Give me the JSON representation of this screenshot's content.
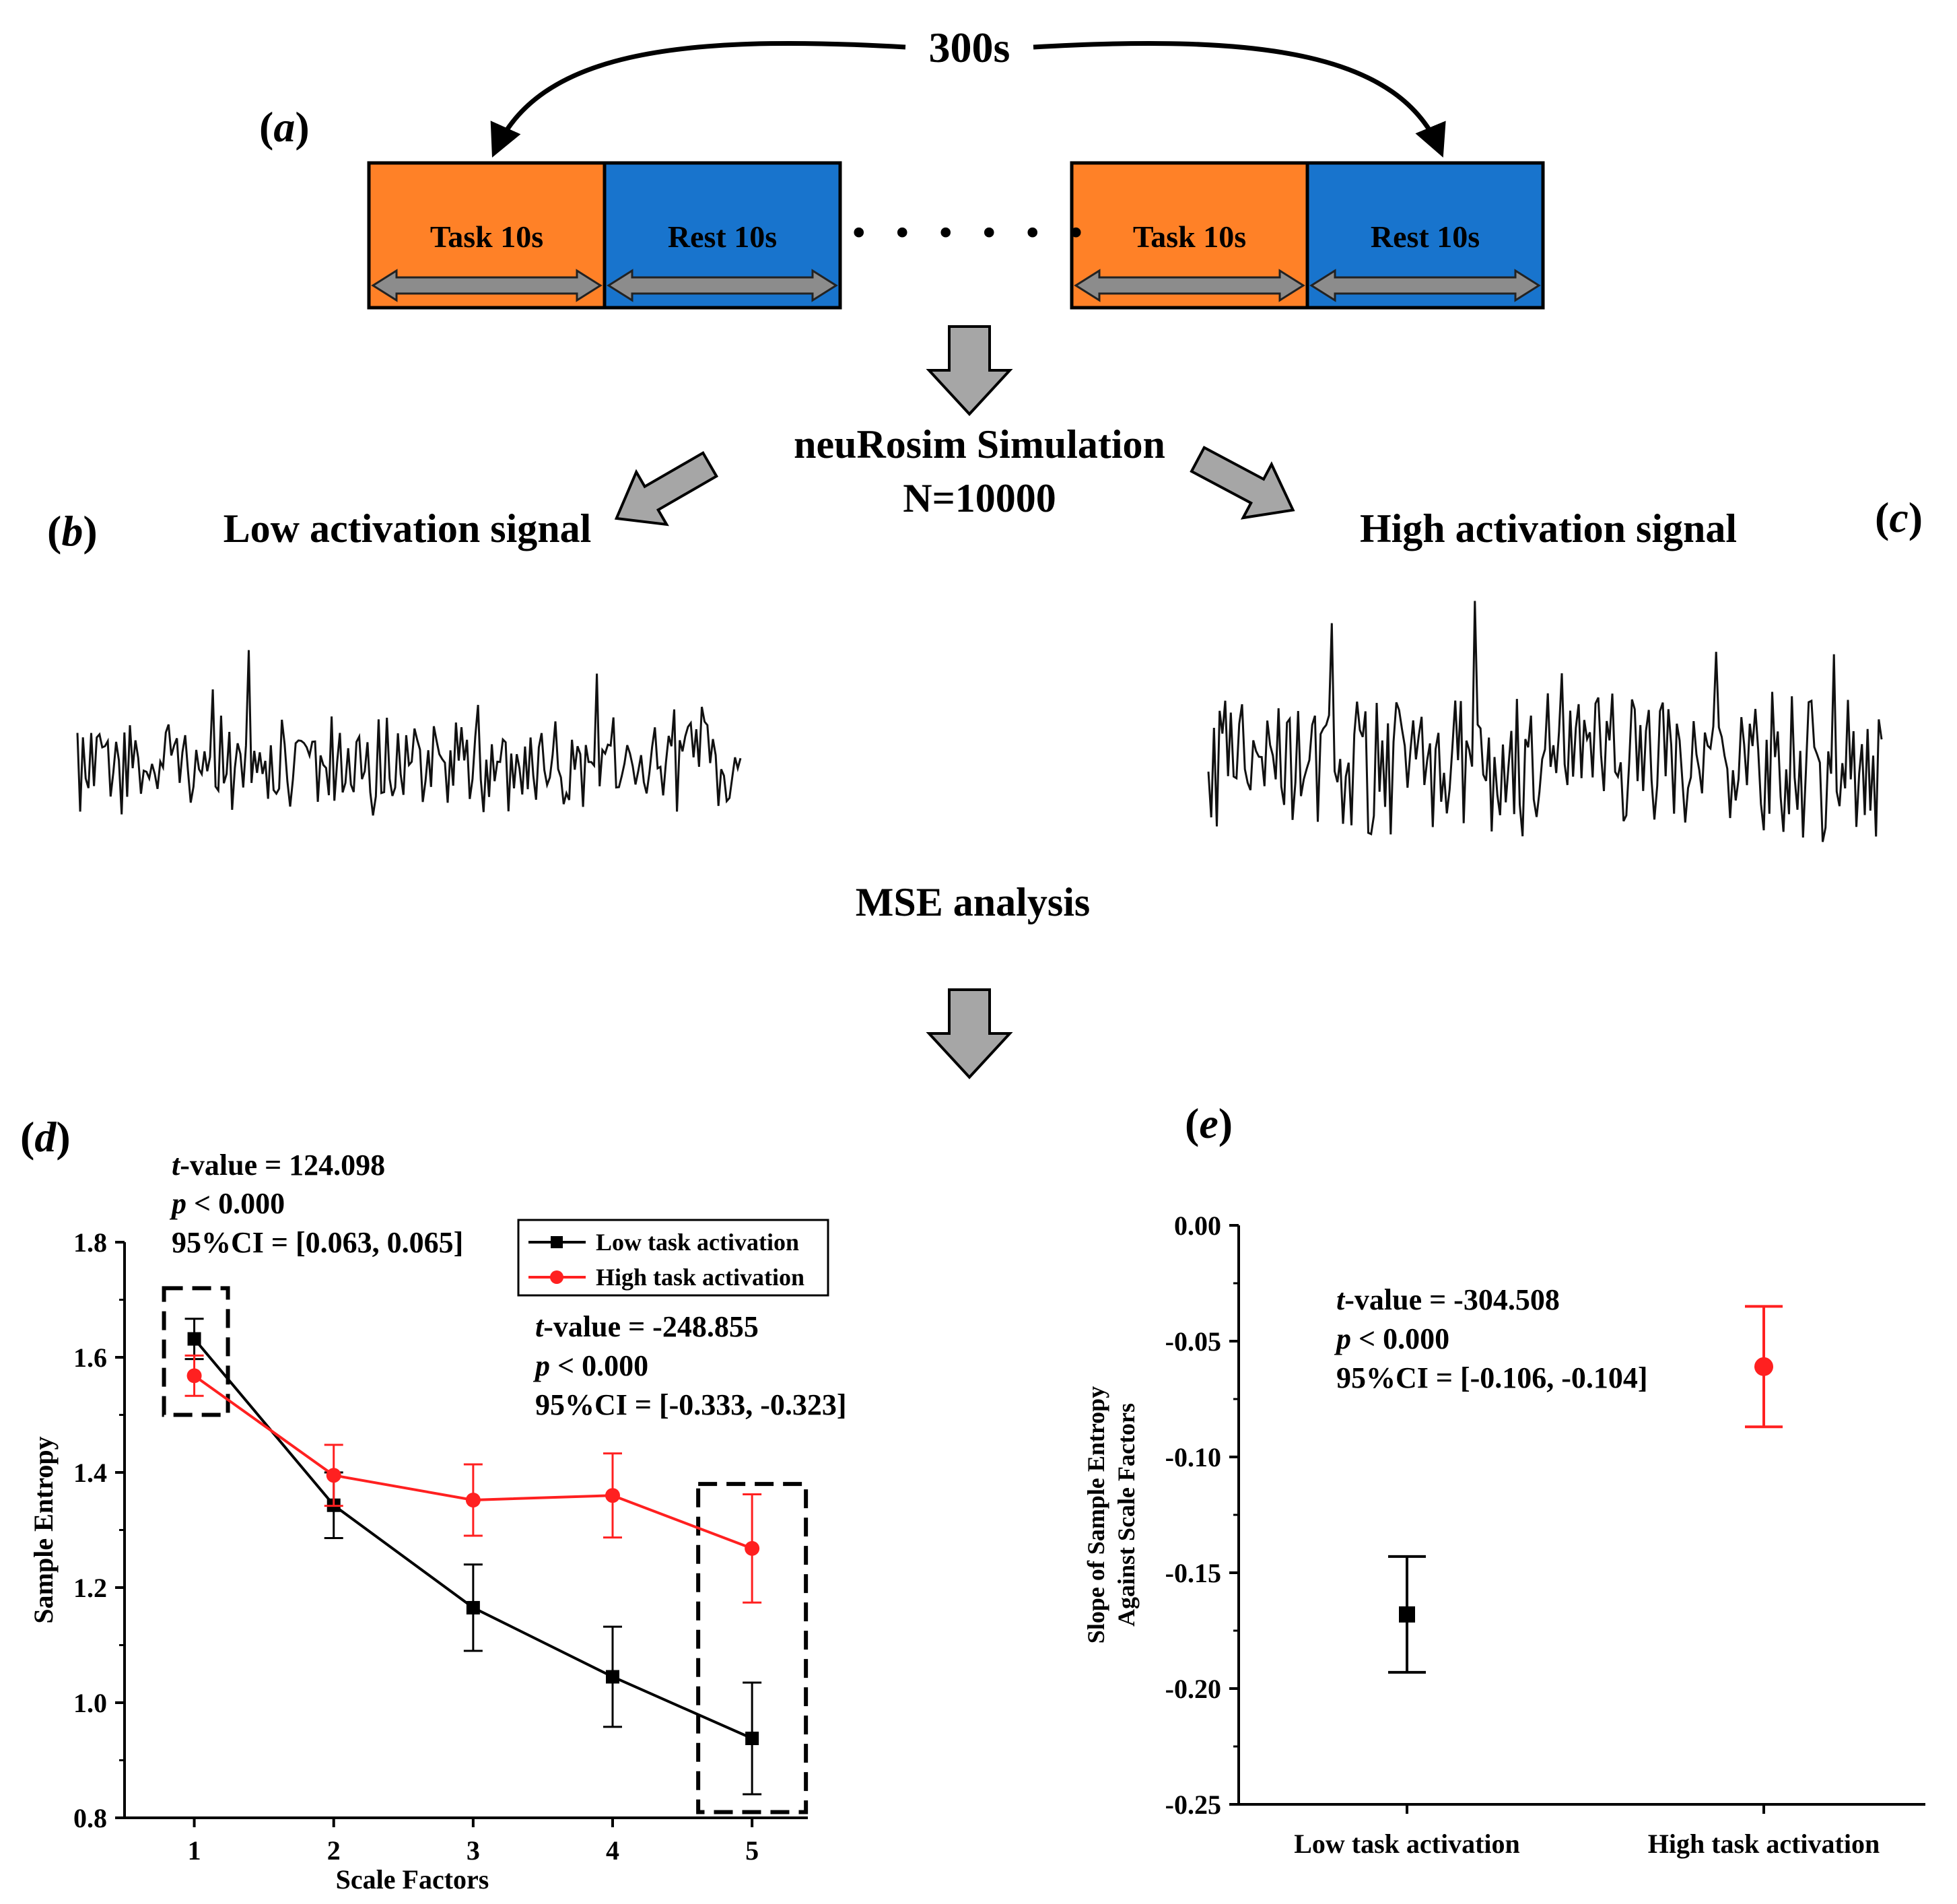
{
  "panel_a": {
    "label_prefix": "(",
    "label_letter": "a",
    "label_suffix": ")",
    "duration_label": "300s",
    "blocks": [
      {
        "text": "Task 10s",
        "color": "#ff8127"
      },
      {
        "text": "Rest 10s",
        "color": "#1874cd"
      },
      {
        "text": "Task 10s",
        "color": "#ff8127"
      },
      {
        "text": "Rest 10s",
        "color": "#1874cd"
      }
    ],
    "ellipsis": "· · · · · ·"
  },
  "simulation": {
    "title": "neuRosim Simulation",
    "n_label": "N=10000"
  },
  "panel_b": {
    "label_letter": "b",
    "title": "Low activation signal"
  },
  "panel_c": {
    "label_letter": "c",
    "title": "High activation signal"
  },
  "mse_label": "MSE analysis",
  "panel_d": {
    "label_letter": "d",
    "stats_left": {
      "t_italic": "t",
      "t_rest": "-value = 124.098",
      "p_italic": "p",
      "p_rest": " < 0.000",
      "ci": "95%CI = [0.063, 0.065]"
    },
    "stats_right": {
      "t_italic": "t",
      "t_rest": "-value = -248.855",
      "p_italic": "p",
      "p_rest": " < 0.000",
      "ci": "95%CI = [-0.333, -0.323]"
    }
  },
  "panel_e": {
    "label_letter": "e",
    "stats": {
      "t_italic": "t",
      "t_rest": "-value = -304.508",
      "p_italic": "p",
      "p_rest": " < 0.000",
      "ci": "95%CI = [-0.106, -0.104]"
    }
  },
  "colors": {
    "low": "#000000",
    "high": "#ff2020",
    "task": "#ff8127",
    "rest": "#1874cd",
    "arrow_fill": "#a6a6a6"
  },
  "chart_data": [
    {
      "type": "line",
      "xlabel": "Scale Factors",
      "ylabel": "Sample Entropy",
      "x": [
        1,
        2,
        3,
        4,
        5
      ],
      "xlim": [
        0.5,
        5.4
      ],
      "ylim": [
        0.8,
        1.8
      ],
      "yticks": [
        "0.8",
        "1.0",
        "1.2",
        "1.4",
        "1.6",
        "1.8"
      ],
      "xticks": [
        "1",
        "2",
        "3",
        "4",
        "5"
      ],
      "legend": "top-right",
      "series": [
        {
          "name": "Low task activation",
          "color": "#000000",
          "marker": "square",
          "values": [
            1.632,
            1.343,
            1.165,
            1.045,
            0.938
          ],
          "errors": [
            0.035,
            0.057,
            0.075,
            0.087,
            0.097
          ]
        },
        {
          "name": "High task activation",
          "color": "#ff2020",
          "marker": "circle",
          "values": [
            1.568,
            1.395,
            1.352,
            1.36,
            1.268
          ],
          "errors": [
            0.035,
            0.053,
            0.062,
            0.073,
            0.094
          ]
        }
      ]
    },
    {
      "type": "scatter",
      "ylabel_line1": "Slope of Sample Entropy",
      "ylabel_line2": "Against Scale Factors",
      "categories": [
        "Low task activation",
        "High task activation"
      ],
      "ylim": [
        -0.25,
        0.0
      ],
      "yticks": [
        "-0.25",
        "-0.20",
        "-0.15",
        "-0.10",
        "-0.05",
        "0.00"
      ],
      "series": [
        {
          "name": "Low task activation",
          "color": "#000000",
          "marker": "square",
          "value": -0.168,
          "error": 0.025
        },
        {
          "name": "High task activation",
          "color": "#ff2020",
          "marker": "circle",
          "value": -0.061,
          "error": 0.026
        }
      ]
    }
  ]
}
